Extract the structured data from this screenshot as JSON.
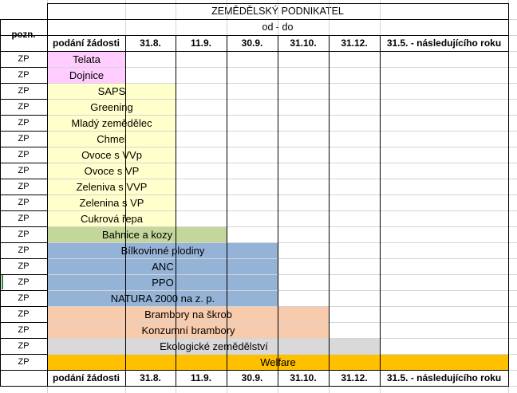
{
  "sheet": {
    "title": "ZEMĚDĚLSKÝ PODNIKATEL",
    "period_label": "od - do",
    "note_header": "pozn.",
    "columns": [
      "podání žádosti",
      "31.8.",
      "11.9.",
      "30.9.",
      "31.10.",
      "31.12.",
      "31.5. - následujícího roku"
    ],
    "rows": [
      {
        "note": "ZP",
        "label": "Telata",
        "end_col": 0,
        "color": "#ffccff"
      },
      {
        "note": "ZP",
        "label": "Dojnice",
        "end_col": 0,
        "color": "#ffccff"
      },
      {
        "note": "ZP",
        "label": "SAPS",
        "end_col": 1,
        "color": "#ffffcc"
      },
      {
        "note": "ZP",
        "label": "Greening",
        "end_col": 1,
        "color": "#ffffcc"
      },
      {
        "note": "ZP",
        "label": "Mladý zemědělec",
        "end_col": 1,
        "color": "#ffffcc"
      },
      {
        "note": "ZP",
        "label": "Chmel",
        "end_col": 1,
        "color": "#ffffcc"
      },
      {
        "note": "ZP",
        "label": "Ovoce s VVp",
        "end_col": 1,
        "color": "#ffffcc"
      },
      {
        "note": "ZP",
        "label": "Ovoce s VP",
        "end_col": 1,
        "color": "#ffffcc"
      },
      {
        "note": "ZP",
        "label": "Zeleniva s VVP",
        "end_col": 1,
        "color": "#ffffcc"
      },
      {
        "note": "ZP",
        "label": "Zelenina s VP",
        "end_col": 1,
        "color": "#ffffcc"
      },
      {
        "note": "ZP",
        "label": "Cukrová řepa",
        "end_col": 1,
        "color": "#ffffcc"
      },
      {
        "note": "ZP",
        "label": "Bahnice a kozy",
        "end_col": 2,
        "color": "#c4d79b"
      },
      {
        "note": "ZP",
        "label": "Bílkovinné plodiny",
        "end_col": 3,
        "color": "#95b3d7"
      },
      {
        "note": "ZP",
        "label": "ANC",
        "end_col": 3,
        "color": "#95b3d7"
      },
      {
        "note": "ZP",
        "label": "PPO",
        "end_col": 3,
        "color": "#95b3d7"
      },
      {
        "note": "ZP",
        "label": "NATURA 2000 na z. p.",
        "end_col": 3,
        "color": "#95b3d7"
      },
      {
        "note": "ZP",
        "label": "Brambory na škrob",
        "end_col": 4,
        "color": "#f8cbad"
      },
      {
        "note": "ZP",
        "label": "Konzumní brambory",
        "end_col": 4,
        "color": "#f8cbad"
      },
      {
        "note": "ZP",
        "label": "Ekologické zemědělství",
        "end_col": 5,
        "color": "#d9d9d9"
      },
      {
        "note": "ZP",
        "label": "Welfare",
        "end_col": 6,
        "color": "#ffc000"
      }
    ]
  }
}
